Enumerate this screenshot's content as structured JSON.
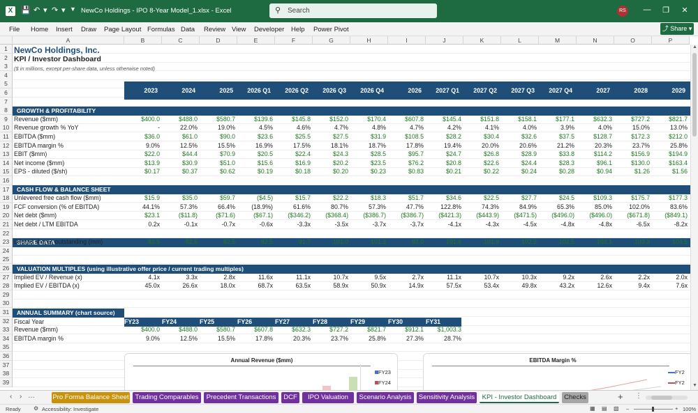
{
  "titlebar": {
    "app_icon": "excel-icon",
    "doc_title": "NewCo Holdings - IPO 8-Year Model_1.xlsx  -  Excel",
    "search_placeholder": "Search",
    "avatar_initials": "RS"
  },
  "menu": [
    "File",
    "Home",
    "Insert",
    "Draw",
    "Page Layout",
    "Formulas",
    "Data",
    "Review",
    "View",
    "Developer",
    "Help",
    "Power Pivot"
  ],
  "share_label": "Share",
  "columns": [
    "A",
    "B",
    "C",
    "D",
    "E",
    "F",
    "G",
    "H",
    "I",
    "J",
    "K",
    "L",
    "M",
    "N",
    "O",
    "P"
  ],
  "rows": [
    "1",
    "2",
    "3",
    "4",
    "5",
    "6",
    "7",
    "8",
    "9",
    "10",
    "11",
    "12",
    "13",
    "14",
    "15",
    "16",
    "17",
    "18",
    "19",
    "20",
    "21",
    "22",
    "23",
    "24",
    "25",
    "26",
    "27",
    "28",
    "29",
    "30",
    "31",
    "32",
    "33",
    "34",
    "35",
    "36",
    "37",
    "38",
    "39"
  ],
  "sheet": {
    "title": "NewCo Holdings, Inc.",
    "subtitle": "KPI / Investor Dashboard",
    "note": "($ in millions, except per-share data, unless otherwise noted)",
    "periods": [
      "2023",
      "2024",
      "2025",
      "2026 Q1",
      "2026 Q2",
      "2026 Q3",
      "2026 Q4",
      "2026",
      "2027 Q1",
      "2027 Q2",
      "2027 Q3",
      "2027 Q4",
      "2027",
      "2028",
      "2029"
    ],
    "sections": {
      "growth": "GROWTH & PROFITABILITY",
      "cashflow": "CASH FLOW & BALANCE SHEET",
      "share": "SHARE DATA",
      "valuation": "VALUATION MULTIPLES (using illustrative offer price / current trading multiples)",
      "summary": "ANNUAL SUMMARY (chart source)"
    },
    "growth_rows": [
      {
        "label": "Revenue ($mm)",
        "green": true,
        "values": [
          "$400.0",
          "$488.0",
          "$580.7",
          "$139.6",
          "$145.8",
          "$152.0",
          "$170.4",
          "$607.8",
          "$145.4",
          "$151.8",
          "$158.1",
          "$177.1",
          "$632.3",
          "$727.2",
          "$821.7"
        ]
      },
      {
        "label": "Revenue growth % YoY",
        "green": false,
        "values": [
          "-",
          "22.0%",
          "19.0%",
          "4.5%",
          "4.6%",
          "4.7%",
          "4.8%",
          "4.7%",
          "4.2%",
          "4.1%",
          "4.0%",
          "3.9%",
          "4.0%",
          "15.0%",
          "13.0%"
        ]
      },
      {
        "label": "EBITDA ($mm)",
        "green": true,
        "values": [
          "$36.0",
          "$61.0",
          "$90.0",
          "$23.6",
          "$25.5",
          "$27.5",
          "$31.9",
          "$108.5",
          "$28.2",
          "$30.4",
          "$32.6",
          "$37.5",
          "$128.7",
          "$172.3",
          "$212.0"
        ]
      },
      {
        "label": "EBITDA margin %",
        "green": false,
        "values": [
          "9.0%",
          "12.5%",
          "15.5%",
          "16.9%",
          "17.5%",
          "18.1%",
          "18.7%",
          "17.8%",
          "19.4%",
          "20.0%",
          "20.6%",
          "21.2%",
          "20.3%",
          "23.7%",
          "25.8%"
        ]
      },
      {
        "label": "EBIT ($mm)",
        "green": true,
        "values": [
          "$22.0",
          "$44.4",
          "$70.9",
          "$20.5",
          "$22.4",
          "$24.3",
          "$28.5",
          "$95.7",
          "$24.7",
          "$26.8",
          "$28.9",
          "$33.8",
          "$114.2",
          "$156.9",
          "$194.9"
        ]
      },
      {
        "label": "Net income ($mm)",
        "green": true,
        "values": [
          "$13.9",
          "$30.9",
          "$51.0",
          "$15.6",
          "$16.9",
          "$20.2",
          "$23.5",
          "$76.2",
          "$20.8",
          "$22.6",
          "$24.4",
          "$28.3",
          "$96.1",
          "$130.0",
          "$163.4"
        ]
      },
      {
        "label": "EPS - diluted ($/sh)",
        "green": true,
        "values": [
          "$0.17",
          "$0.37",
          "$0.62",
          "$0.19",
          "$0.18",
          "$0.20",
          "$0.23",
          "$0.83",
          "$0.21",
          "$0.22",
          "$0.24",
          "$0.28",
          "$0.94",
          "$1.26",
          "$1.56"
        ]
      }
    ],
    "cashflow_rows": [
      {
        "label": "Unlevered free cash flow ($mm)",
        "green": true,
        "values": [
          "$15.9",
          "$35.0",
          "$59.7",
          "($4.5)",
          "$15.7",
          "$22.2",
          "$18.3",
          "$51.7",
          "$34.6",
          "$22.5",
          "$27.7",
          "$24.5",
          "$109.3",
          "$175.7",
          "$177.3"
        ]
      },
      {
        "label": "FCF conversion (% of EBITDA)",
        "green": false,
        "values": [
          "44.1%",
          "57.3%",
          "66.4%",
          "(18.9%)",
          "61.6%",
          "80.7%",
          "57.3%",
          "47.7%",
          "122.8%",
          "74.3%",
          "84.9%",
          "65.3%",
          "85.0%",
          "102.0%",
          "83.6%"
        ]
      },
      {
        "label": "Net debt ($mm)",
        "green": true,
        "values": [
          "$23.1",
          "($11.8)",
          "($71.6)",
          "($67.1)",
          "($346.2)",
          "($368.4)",
          "($386.7)",
          "($386.7)",
          "($421.3)",
          "($443.9)",
          "($471.5)",
          "($496.0)",
          "($496.0)",
          "($671.8)",
          "($849.1)"
        ]
      },
      {
        "label": "Net debt / LTM EBITDA",
        "green": false,
        "values": [
          "0.2x",
          "-0.1x",
          "-0.7x",
          "-0.6x",
          "-3.3x",
          "-3.5x",
          "-3.7x",
          "-3.7x",
          "-4.1x",
          "-4.3x",
          "-4.5x",
          "-4.8x",
          "-4.8x",
          "-6.5x",
          "-8.2x"
        ]
      }
    ],
    "share_rows": [
      {
        "label": "Diluted shares outstanding (mm)",
        "green": true,
        "values": [
          "82.5",
          "82.5",
          "82.5",
          "82.5",
          "91.7",
          "101.0",
          "101.3",
          "92.0",
          "101.6",
          "101.9",
          "102.2",
          "102.5",
          "102.1",
          "103.3",
          "104.5"
        ]
      }
    ],
    "valuation_rows": [
      {
        "label": "Implied EV / Revenue (x)",
        "green": false,
        "values": [
          "4.1x",
          "3.3x",
          "2.8x",
          "11.6x",
          "11.1x",
          "10.7x",
          "9.5x",
          "2.7x",
          "11.1x",
          "10.7x",
          "10.3x",
          "9.2x",
          "2.6x",
          "2.2x",
          "2.0x"
        ]
      },
      {
        "label": "Implied EV / EBITDA (x)",
        "green": false,
        "values": [
          "45.0x",
          "26.6x",
          "18.0x",
          "68.7x",
          "63.5x",
          "58.9x",
          "50.9x",
          "14.9x",
          "57.5x",
          "53.4x",
          "49.8x",
          "43.2x",
          "12.6x",
          "9.4x",
          "7.6x"
        ]
      }
    ],
    "summary": {
      "fiscal_label": "Fiscal Year",
      "years": [
        "FY23",
        "FY24",
        "FY25",
        "FY26",
        "FY27",
        "FY28",
        "FY29",
        "FY30",
        "FY31"
      ],
      "revenue_label": "Revenue ($mm)",
      "revenue": [
        "$400.0",
        "$488.0",
        "$580.7",
        "$607.8",
        "$632.3",
        "$727.2",
        "$821.7",
        "$912.1",
        "$1,003.3"
      ],
      "margin_label": "EBITDA margin %",
      "margin": [
        "9.0%",
        "12.5%",
        "15.5%",
        "17.8%",
        "20.3%",
        "23.7%",
        "25.8%",
        "27.3%",
        "28.7%"
      ]
    }
  },
  "charts": [
    {
      "title": "Annual Revenue ($mm)",
      "legend": [
        "FY23",
        "FY24"
      ],
      "colors": [
        "#4472c4",
        "#c0504d"
      ]
    },
    {
      "title": "EBITDA Margin %",
      "legend": [
        "FY2",
        "FY2"
      ],
      "colors": [
        "#4472c4",
        "#c0504d"
      ]
    }
  ],
  "tabs": [
    {
      "label": "Pro Forma Balance Sheet",
      "color": "#c9920a"
    },
    {
      "label": "Trading Comparables",
      "color": "#7030a0"
    },
    {
      "label": "Precedent Transactions",
      "color": "#7030a0"
    },
    {
      "label": "DCF",
      "color": "#7030a0"
    },
    {
      "label": "IPO Valuation",
      "color": "#7030a0"
    },
    {
      "label": "Scenario Analysis",
      "color": "#7030a0"
    },
    {
      "label": "Sensitivity Analysis",
      "color": "#7030a0"
    },
    {
      "label": "KPI - Investor Dashboard",
      "color": "#ffffff",
      "active": true
    },
    {
      "label": "Checks",
      "color": "#a6a6a6"
    }
  ],
  "status": {
    "ready": "Ready",
    "accessibility": "Accessibility: Investigate",
    "zoom": "100%"
  }
}
